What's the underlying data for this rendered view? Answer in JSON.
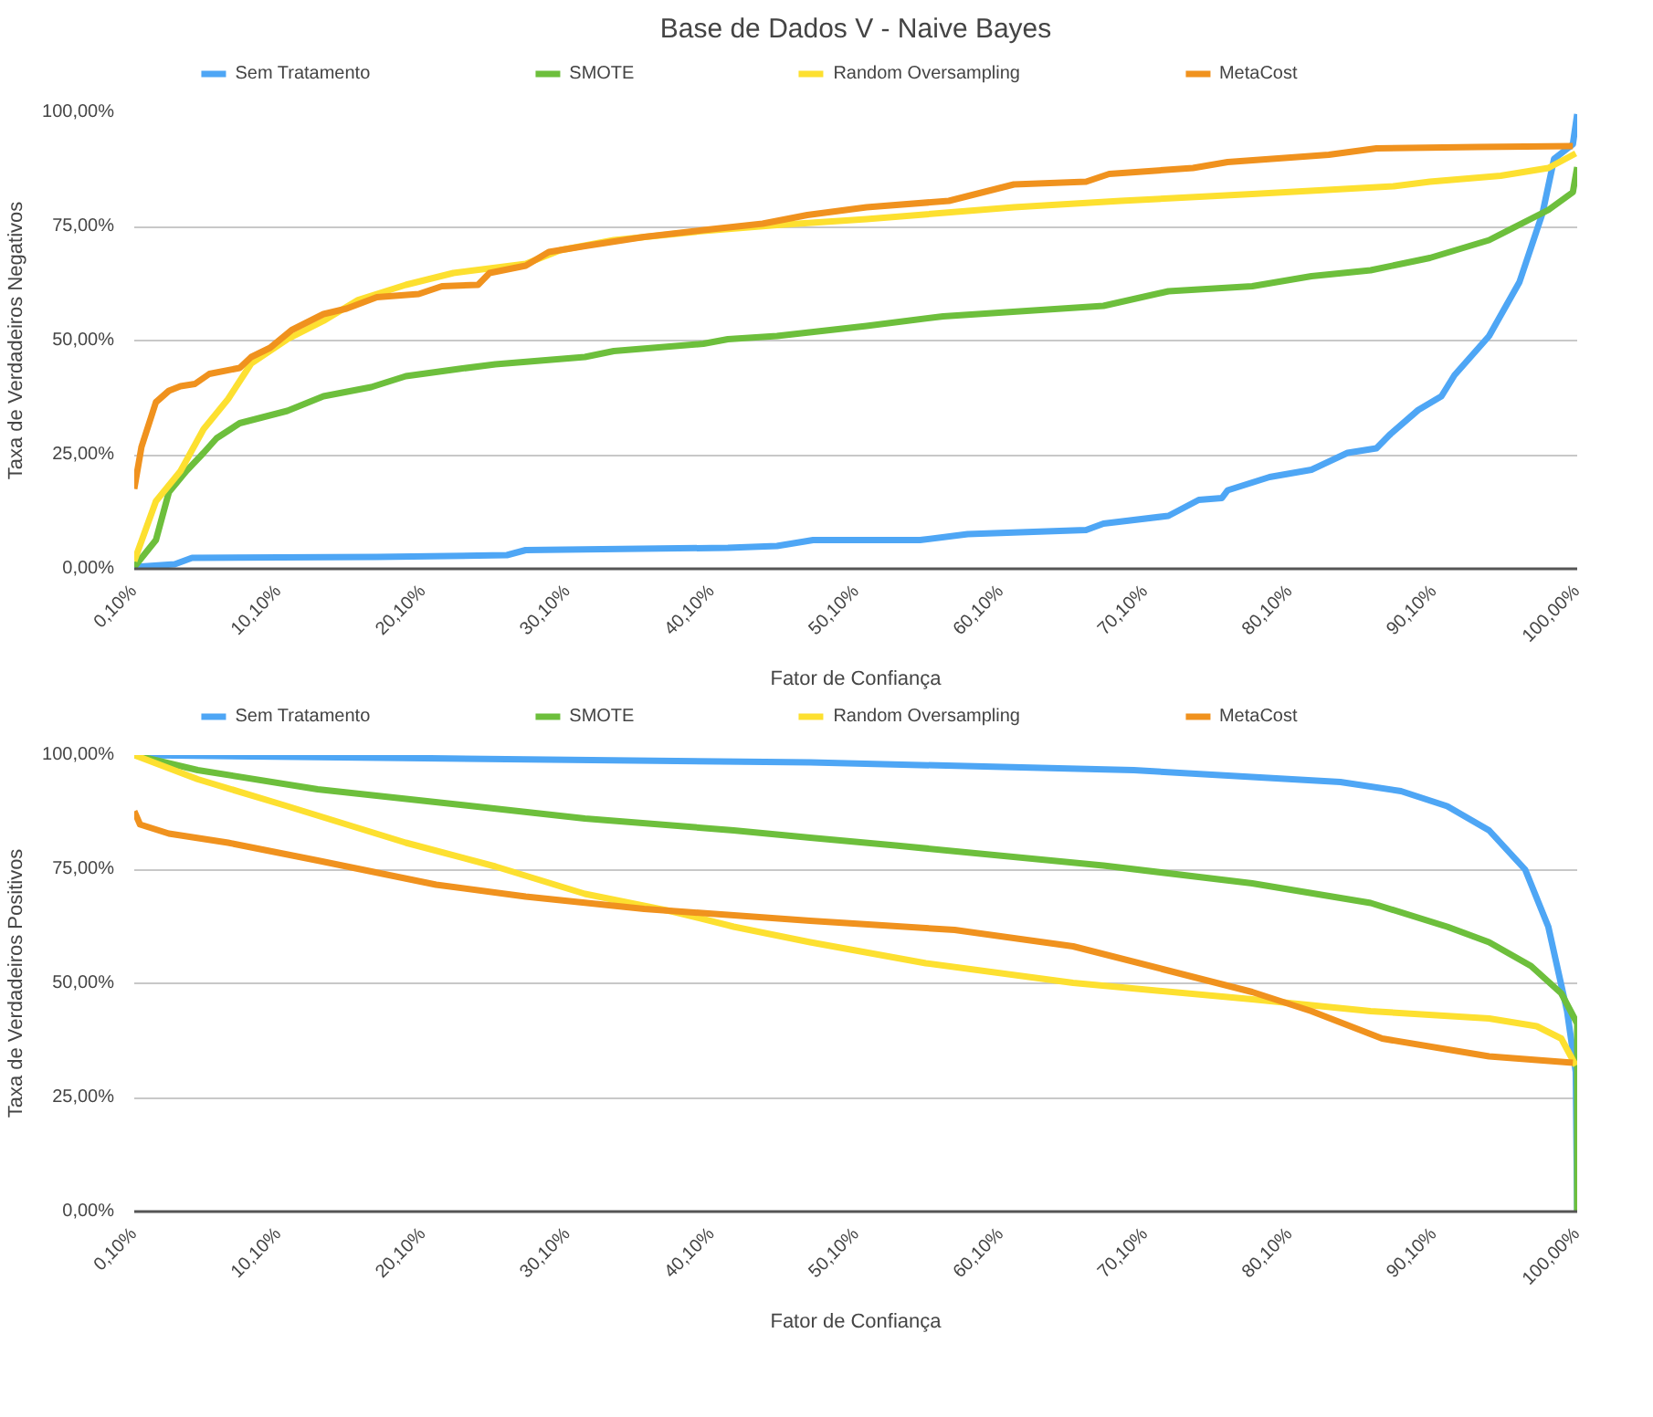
{
  "chart_data": [
    {
      "type": "line",
      "title": "Base de Dados V - Naive Bayes",
      "xlabel": "Fator de Confiança",
      "ylabel": "Taxa de Verdadeiros Negativos",
      "xlim": [
        0.1,
        100
      ],
      "ylim": [
        0,
        100
      ],
      "xticks": [
        {
          "value": 0.1,
          "label": "0,10%"
        },
        {
          "value": 10.1,
          "label": "10,10%"
        },
        {
          "value": 20.1,
          "label": "20,10%"
        },
        {
          "value": 30.1,
          "label": "30,10%"
        },
        {
          "value": 40.1,
          "label": "40,10%"
        },
        {
          "value": 50.1,
          "label": "50,10%"
        },
        {
          "value": 60.1,
          "label": "60,10%"
        },
        {
          "value": 70.1,
          "label": "70,10%"
        },
        {
          "value": 80.1,
          "label": "80,10%"
        },
        {
          "value": 90.1,
          "label": "90,10%"
        },
        {
          "value": 100,
          "label": "100,00%"
        }
      ],
      "yticks": [
        {
          "value": 0,
          "label": "0,00%"
        },
        {
          "value": 25,
          "label": "25,00%"
        },
        {
          "value": 50,
          "label": "50,00%"
        },
        {
          "value": 75,
          "label": "75,00%"
        },
        {
          "value": 100,
          "label": "100,00%"
        }
      ],
      "grid": "y",
      "legend": "top",
      "series": [
        {
          "name": "Sem Tratamento",
          "color": "#4ea6f5",
          "x": [
            0.1,
            2.9,
            4.1,
            16.9,
            25.9,
            27.2,
            41.2,
            44.6,
            47.1,
            54.5,
            57.8,
            66,
            67.2,
            71.7,
            73.8,
            75.4,
            75.8,
            78.7,
            81.6,
            84.1,
            86.1,
            87,
            89,
            90.6,
            91.5,
            93.9,
            96,
            97.6,
            98.4,
            99.7,
            100
          ],
          "values": [
            0.4,
            1,
            2.4,
            2.6,
            3,
            4.1,
            4.6,
            5,
            6.3,
            6.3,
            7.6,
            8.5,
            9.9,
            11.6,
            15.1,
            15.5,
            17.2,
            20.1,
            21.7,
            25.4,
            26.4,
            29.3,
            34.8,
            37.8,
            42.4,
            51,
            62.8,
            77.9,
            89.8,
            93,
            99.6
          ]
        },
        {
          "name": "SMOTE",
          "color": "#6dbf3c",
          "x": [
            0.1,
            1.6,
            2.5,
            3.7,
            4.9,
            5.8,
            7.4,
            10.7,
            13.2,
            16.5,
            18.9,
            22.6,
            25.1,
            31.3,
            33.3,
            39.5,
            41.2,
            44.6,
            50.8,
            56.1,
            67.2,
            71.7,
            77.5,
            81.6,
            85.7,
            89.8,
            93.9,
            98,
            99.7,
            100
          ],
          "values": [
            0.4,
            6.3,
            16.8,
            21.4,
            25.4,
            28.6,
            31.9,
            34.6,
            37.8,
            39.8,
            42.2,
            43.8,
            44.8,
            46.4,
            47.7,
            49.3,
            50.3,
            51,
            53.2,
            55.3,
            57.6,
            60.8,
            61.9,
            64.1,
            65.4,
            68.1,
            72,
            78.6,
            82.5,
            88
          ]
        },
        {
          "name": "Random Oversampling",
          "color": "#fde030",
          "x": [
            0.1,
            1.6,
            3.3,
            4.9,
            6.6,
            8.2,
            10.7,
            13.2,
            15.6,
            18.9,
            22.2,
            27.2,
            29.6,
            33.3,
            39.5,
            44.6,
            50.8,
            61,
            68.4,
            77.5,
            87.3,
            89.8,
            94.7,
            98,
            99.9
          ],
          "values": [
            1.7,
            14.8,
            21.4,
            30.6,
            37.2,
            45,
            50.3,
            54.3,
            58.9,
            62.2,
            64.8,
            66.8,
            69.8,
            72,
            74,
            75.3,
            76.6,
            79.2,
            80.6,
            82.1,
            83.8,
            84.8,
            86.1,
            87.8,
            91
          ]
        },
        {
          "name": "MetaCost",
          "color": "#f0921e",
          "x": [
            0.1,
            0.6,
            1.6,
            2.5,
            3.3,
            4.3,
            5.3,
            7.4,
            8.2,
            9.5,
            11,
            13.2,
            14.8,
            16.9,
            19.8,
            21.4,
            23.9,
            24.7,
            27.2,
            28.8,
            31.3,
            35.4,
            39.5,
            43.6,
            46.7,
            50.8,
            56.5,
            61,
            66,
            67.6,
            73.4,
            75.8,
            82.8,
            86.1,
            93.1,
            99.7
          ],
          "values": [
            17.5,
            26.7,
            36.5,
            39,
            40,
            40.5,
            42.7,
            44,
            46.4,
            48.4,
            52.3,
            55.8,
            57,
            59.5,
            60.2,
            61.9,
            62.2,
            64.8,
            66.4,
            69.4,
            70.7,
            72.7,
            74.2,
            75.6,
            77.5,
            79.2,
            80.6,
            84.2,
            84.8,
            86.5,
            87.8,
            89.1,
            90.7,
            92.1,
            92.4,
            92.6
          ]
        }
      ]
    },
    {
      "type": "line",
      "xlabel": "Fator de Confiança",
      "ylabel": "Taxa de Verdadeiros Positivos",
      "xlim": [
        0.1,
        100
      ],
      "ylim": [
        0,
        100
      ],
      "xticks": [
        {
          "value": 0.1,
          "label": "0,10%"
        },
        {
          "value": 10.1,
          "label": "10,10%"
        },
        {
          "value": 20.1,
          "label": "20,10%"
        },
        {
          "value": 30.1,
          "label": "30,10%"
        },
        {
          "value": 40.1,
          "label": "40,10%"
        },
        {
          "value": 50.1,
          "label": "50,10%"
        },
        {
          "value": 60.1,
          "label": "60,10%"
        },
        {
          "value": 70.1,
          "label": "70,10%"
        },
        {
          "value": 80.1,
          "label": "80,10%"
        },
        {
          "value": 90.1,
          "label": "90,10%"
        },
        {
          "value": 100,
          "label": "100,00%"
        }
      ],
      "yticks": [
        {
          "value": 0,
          "label": "0,00%"
        },
        {
          "value": 25,
          "label": "25,00%"
        },
        {
          "value": 50,
          "label": "50,00%"
        },
        {
          "value": 75,
          "label": "75,00%"
        },
        {
          "value": 100,
          "label": "100,00%"
        }
      ],
      "grid": "y",
      "legend": "top",
      "series": [
        {
          "name": "Sem Tratamento",
          "color": "#4ea6f5",
          "x": [
            0.1,
            46.9,
            69.3,
            83.6,
            87.8,
            91,
            93.9,
            96.4,
            98,
            99.3,
            99.9,
            100
          ],
          "values": [
            100,
            98.4,
            96.7,
            94.1,
            92.1,
            88.8,
            83.5,
            74.9,
            62.4,
            43.9,
            30.6,
            0
          ]
        },
        {
          "name": "SMOTE",
          "color": "#6dbf3c",
          "x": [
            0.1,
            4.5,
            12.8,
            23,
            31.3,
            41.6,
            46.9,
            52.8,
            67.2,
            77.5,
            85.7,
            91,
            93.9,
            96.8,
            98.9,
            100,
            100
          ],
          "values": [
            100,
            96.7,
            92.5,
            89,
            86.1,
            83.5,
            81.9,
            80.2,
            75.8,
            71.9,
            67.6,
            62.4,
            59,
            53.8,
            47.8,
            41.2,
            0
          ]
        },
        {
          "name": "Random Oversampling",
          "color": "#fde030",
          "x": [
            0.1,
            4.5,
            10.7,
            18.9,
            25.1,
            31.3,
            37.4,
            41.6,
            46.9,
            54.9,
            65.1,
            77.5,
            85.7,
            93.9,
            97.2,
            98.9,
            99.9
          ],
          "values": [
            100,
            94.7,
            88.8,
            80.8,
            75.6,
            69.6,
            65.7,
            62.4,
            59,
            54.4,
            50.1,
            46.5,
            43.9,
            42.3,
            40.6,
            37.9,
            32
          ]
        },
        {
          "name": "MetaCost",
          "color": "#f0921e",
          "x": [
            0.1,
            0.5,
            2.5,
            6.6,
            12.8,
            21,
            27.2,
            35.4,
            46.9,
            56.9,
            65.1,
            71.3,
            77.5,
            81.6,
            86.5,
            93.9,
            99.7
          ],
          "values": [
            87.7,
            84.8,
            82.8,
            80.8,
            76.9,
            71.6,
            69,
            66.3,
            63.7,
            61.7,
            58.1,
            53.1,
            48.1,
            43.9,
            37.9,
            34,
            32.6
          ]
        }
      ]
    }
  ]
}
